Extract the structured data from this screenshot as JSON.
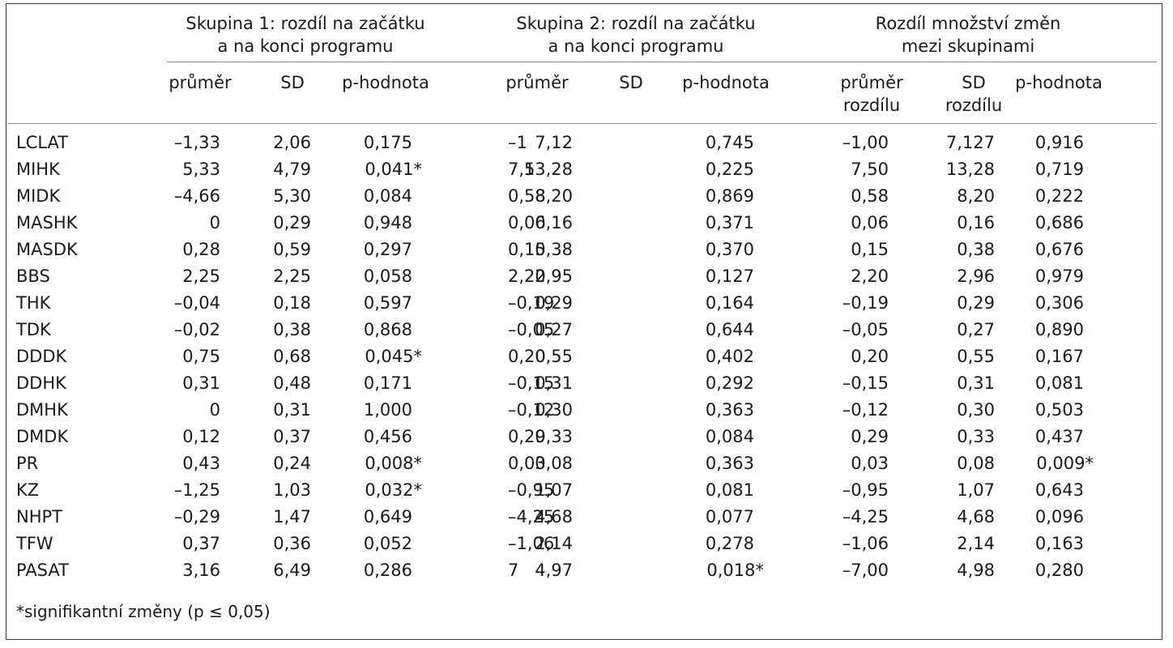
{
  "groups": [
    {
      "line1": "Skupina 1: rozdíl na začátku",
      "line2": "a na konci programu"
    },
    {
      "line1": "Skupina 2: rozdíl na začátku",
      "line2": "a na konci programu"
    },
    {
      "line1": "Rozdíl množství změn",
      "line2": "mezi skupinami"
    }
  ],
  "subheaders": [
    {
      "l1": "průměr",
      "l2": ""
    },
    {
      "l1": "SD",
      "l2": ""
    },
    {
      "l1": "p-hodnota",
      "l2": ""
    },
    {
      "l1": "průměr",
      "l2": ""
    },
    {
      "l1": "SD",
      "l2": ""
    },
    {
      "l1": "p-hodnota",
      "l2": ""
    },
    {
      "l1": "průměr",
      "l2": "rozdílu"
    },
    {
      "l1": "SD",
      "l2": "rozdílu"
    },
    {
      "l1": "p-hodnota",
      "l2": ""
    }
  ],
  "rows": [
    [
      "LCLAT",
      "–1,33",
      "2,06",
      "0,175",
      "–1",
      "7,12",
      "0,745",
      "–1,00",
      "7,127",
      "0,916"
    ],
    [
      "MIHK",
      "5,33",
      "4,79",
      "0,041*",
      "7,5",
      "13,28",
      "0,225",
      "7,50",
      "13,28",
      "0,719"
    ],
    [
      "MIDK",
      "–4,66",
      "5,30",
      "0,084",
      "0,58",
      "8,20",
      "0,869",
      "0,58",
      "8,20",
      "0,222"
    ],
    [
      "MASHK",
      "0",
      "0,29",
      "0,948",
      "0,06",
      "0,16",
      "0,371",
      "0,06",
      "0,16",
      "0,686"
    ],
    [
      "MASDK",
      "0,28",
      "0,59",
      "0,297",
      "0,15",
      "0,38",
      "0,370",
      "0,15",
      "0,38",
      "0,676"
    ],
    [
      "BBS",
      "2,25",
      "2,25",
      "0,058",
      "2,20",
      "2,95",
      "0,127",
      "2,20",
      "2,96",
      "0,979"
    ],
    [
      "THK",
      "–0,04",
      "0,18",
      "0,597",
      "–0,19",
      "0,29",
      "0,164",
      "–0,19",
      "0,29",
      "0,306"
    ],
    [
      "TDK",
      "–0,02",
      "0,38",
      "0,868",
      "–0,05",
      "0,27",
      "0,644",
      "–0,05",
      "0,27",
      "0,890"
    ],
    [
      "DDDK",
      "0,75",
      "0,68",
      "0,045*",
      "0,20",
      "0,55",
      "0,402",
      "0,20",
      "0,55",
      "0,167"
    ],
    [
      "DDHK",
      "0,31",
      "0,48",
      "0,171",
      "–0,15",
      "0,31",
      "0,292",
      "–0,15",
      "0,31",
      "0,081"
    ],
    [
      "DMHK",
      "0",
      "0,31",
      "1,000",
      "–0,12",
      "0,30",
      "0,363",
      "–0,12",
      "0,30",
      "0,503"
    ],
    [
      "DMDK",
      "0,12",
      "0,37",
      "0,456",
      "0,29",
      "0,33",
      "0,084",
      "0,29",
      "0,33",
      "0,437"
    ],
    [
      "PR",
      "0,43",
      "0,24",
      "0,008*",
      "0,03",
      "0,08",
      "0,363",
      "0,03",
      "0,08",
      "0,009*"
    ],
    [
      "KZ",
      "–1,25",
      "1,03",
      "0,032*",
      "–0,95",
      "1,07",
      "0,081",
      "–0,95",
      "1,07",
      "0,643"
    ],
    [
      "NHPT",
      "–0,29",
      "1,47",
      "0,649",
      "–4,25",
      "4,68",
      "0,077",
      "–4,25",
      "4,68",
      "0,096"
    ],
    [
      "TFW",
      "0,37",
      "0,36",
      "0,052",
      "–1,06",
      "2,14",
      "0,278",
      "–1,06",
      "2,14",
      "0,163"
    ],
    [
      "PASAT",
      "3,16",
      "6,49",
      "0,286",
      "7",
      "4,97",
      "0,018*",
      "–7,00",
      "4,98",
      "0,280"
    ]
  ],
  "footnote": "*signifikantní změny (p ≤ 0,05)"
}
